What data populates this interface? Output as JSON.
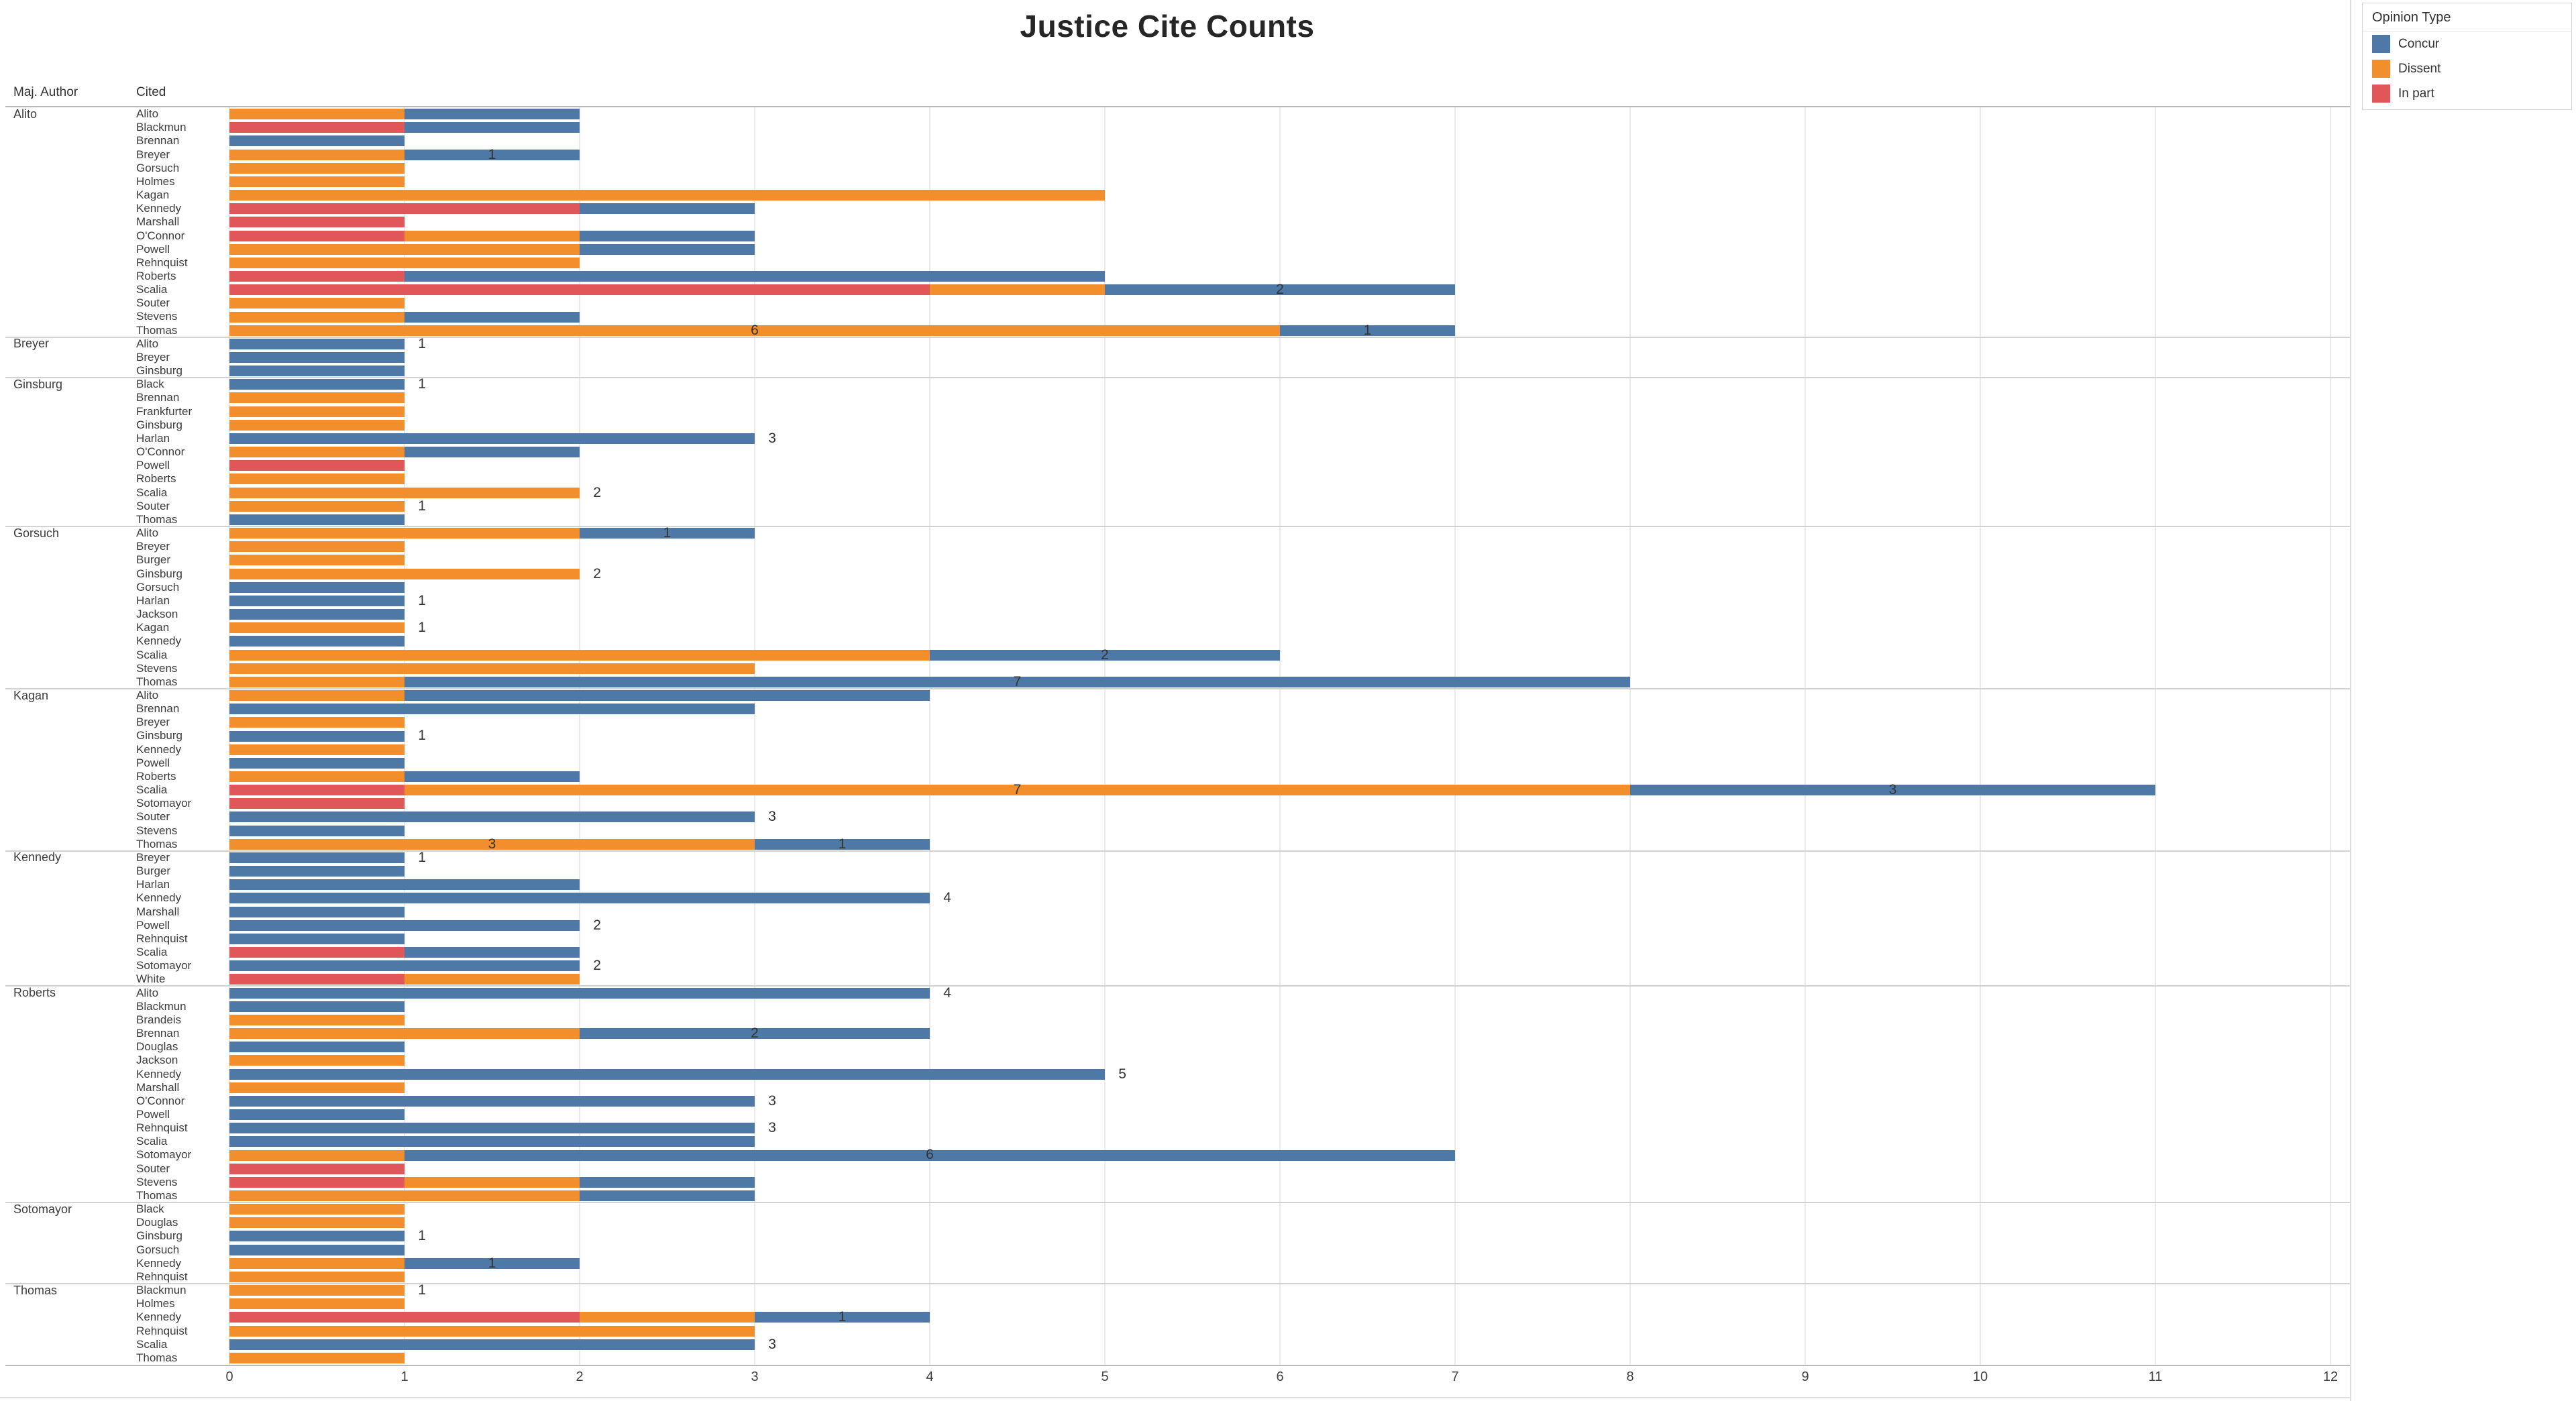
{
  "title": "Justice Cite Counts",
  "columns": {
    "maj_author": "Maj. Author",
    "cited": "Cited"
  },
  "legend": {
    "title": "Opinion Type",
    "items": [
      {
        "label": "Concur",
        "color": "#4e79a7"
      },
      {
        "label": "Dissent",
        "color": "#f28e2b"
      },
      {
        "label": "In part",
        "color": "#e15759"
      }
    ]
  },
  "axis": {
    "min": 0,
    "max": 12,
    "ticks": [
      0,
      1,
      2,
      3,
      4,
      5,
      6,
      7,
      8,
      9,
      10,
      11,
      12
    ]
  },
  "chart_data": {
    "type": "bar",
    "orientation": "horizontal-stacked",
    "title": "Justice Cite Counts",
    "xlabel": "",
    "ylabel": "Maj. Author / Cited",
    "xlim": [
      0,
      12
    ],
    "grid": true,
    "legend_position": "top-right",
    "stack_order": [
      "In part",
      "Dissent",
      "Concur"
    ],
    "series_colors": {
      "inpart": "#e15759",
      "dissent": "#f28e2b",
      "concur": "#4e79a7"
    },
    "groups": [
      {
        "author": "Alito",
        "rows": [
          {
            "cited": "Alito",
            "inpart": 0,
            "dissent": 1,
            "concur": 1,
            "labels": []
          },
          {
            "cited": "Blackmun",
            "inpart": 1,
            "dissent": 0,
            "concur": 1,
            "labels": []
          },
          {
            "cited": "Brennan",
            "inpart": 0,
            "dissent": 0,
            "concur": 1,
            "labels": []
          },
          {
            "cited": "Breyer",
            "inpart": 0,
            "dissent": 1,
            "concur": 1,
            "labels": [
              {
                "text": "1",
                "at": 1.5
              }
            ]
          },
          {
            "cited": "Gorsuch",
            "inpart": 0,
            "dissent": 1,
            "concur": 0,
            "labels": []
          },
          {
            "cited": "Holmes",
            "inpart": 0,
            "dissent": 1,
            "concur": 0,
            "labels": []
          },
          {
            "cited": "Kagan",
            "inpart": 0,
            "dissent": 5,
            "concur": 0,
            "labels": []
          },
          {
            "cited": "Kennedy",
            "inpart": 2,
            "dissent": 0,
            "concur": 1,
            "labels": []
          },
          {
            "cited": "Marshall",
            "inpart": 1,
            "dissent": 0,
            "concur": 0,
            "labels": []
          },
          {
            "cited": "O'Connor",
            "inpart": 1,
            "dissent": 1,
            "concur": 1,
            "labels": []
          },
          {
            "cited": "Powell",
            "inpart": 0,
            "dissent": 2,
            "concur": 1,
            "labels": []
          },
          {
            "cited": "Rehnquist",
            "inpart": 0,
            "dissent": 2,
            "concur": 0,
            "labels": []
          },
          {
            "cited": "Roberts",
            "inpart": 1,
            "dissent": 0,
            "concur": 4,
            "labels": []
          },
          {
            "cited": "Scalia",
            "inpart": 4,
            "dissent": 1,
            "concur": 2,
            "labels": [
              {
                "text": "2",
                "at": 6
              }
            ]
          },
          {
            "cited": "Souter",
            "inpart": 0,
            "dissent": 1,
            "concur": 0,
            "labels": []
          },
          {
            "cited": "Stevens",
            "inpart": 0,
            "dissent": 1,
            "concur": 1,
            "labels": []
          },
          {
            "cited": "Thomas",
            "inpart": 0,
            "dissent": 6,
            "concur": 1,
            "labels": [
              {
                "text": "6",
                "at": 3
              },
              {
                "text": "1",
                "at": 6.5
              }
            ]
          }
        ]
      },
      {
        "author": "Breyer",
        "rows": [
          {
            "cited": "Alito",
            "inpart": 0,
            "dissent": 0,
            "concur": 1,
            "labels": [
              {
                "text": "1",
                "at": 1.1
              }
            ]
          },
          {
            "cited": "Breyer",
            "inpart": 0,
            "dissent": 0,
            "concur": 1,
            "labels": []
          },
          {
            "cited": "Ginsburg",
            "inpart": 0,
            "dissent": 0,
            "concur": 1,
            "labels": []
          }
        ]
      },
      {
        "author": "Ginsburg",
        "rows": [
          {
            "cited": "Black",
            "inpart": 0,
            "dissent": 0,
            "concur": 1,
            "labels": [
              {
                "text": "1",
                "at": 1.1
              }
            ]
          },
          {
            "cited": "Brennan",
            "inpart": 0,
            "dissent": 1,
            "concur": 0,
            "labels": []
          },
          {
            "cited": "Frankfurter",
            "inpart": 0,
            "dissent": 1,
            "concur": 0,
            "labels": []
          },
          {
            "cited": "Ginsburg",
            "inpart": 0,
            "dissent": 1,
            "concur": 0,
            "labels": []
          },
          {
            "cited": "Harlan",
            "inpart": 0,
            "dissent": 0,
            "concur": 3,
            "labels": [
              {
                "text": "3",
                "at": 3.1
              }
            ]
          },
          {
            "cited": "O'Connor",
            "inpart": 0,
            "dissent": 1,
            "concur": 1,
            "labels": []
          },
          {
            "cited": "Powell",
            "inpart": 1,
            "dissent": 0,
            "concur": 0,
            "labels": []
          },
          {
            "cited": "Roberts",
            "inpart": 0,
            "dissent": 1,
            "concur": 0,
            "labels": []
          },
          {
            "cited": "Scalia",
            "inpart": 0,
            "dissent": 2,
            "concur": 0,
            "labels": [
              {
                "text": "2",
                "at": 2.1
              }
            ]
          },
          {
            "cited": "Souter",
            "inpart": 0,
            "dissent": 1,
            "concur": 0,
            "labels": [
              {
                "text": "1",
                "at": 1.1
              }
            ]
          },
          {
            "cited": "Thomas",
            "inpart": 0,
            "dissent": 0,
            "concur": 1,
            "labels": []
          }
        ]
      },
      {
        "author": "Gorsuch",
        "rows": [
          {
            "cited": "Alito",
            "inpart": 0,
            "dissent": 2,
            "concur": 1,
            "labels": [
              {
                "text": "1",
                "at": 2.5
              }
            ]
          },
          {
            "cited": "Breyer",
            "inpart": 0,
            "dissent": 1,
            "concur": 0,
            "labels": []
          },
          {
            "cited": "Burger",
            "inpart": 0,
            "dissent": 1,
            "concur": 0,
            "labels": []
          },
          {
            "cited": "Ginsburg",
            "inpart": 0,
            "dissent": 2,
            "concur": 0,
            "labels": [
              {
                "text": "2",
                "at": 2.1
              }
            ]
          },
          {
            "cited": "Gorsuch",
            "inpart": 0,
            "dissent": 0,
            "concur": 1,
            "labels": []
          },
          {
            "cited": "Harlan",
            "inpart": 0,
            "dissent": 0,
            "concur": 1,
            "labels": [
              {
                "text": "1",
                "at": 1.1
              }
            ]
          },
          {
            "cited": "Jackson",
            "inpart": 0,
            "dissent": 0,
            "concur": 1,
            "labels": []
          },
          {
            "cited": "Kagan",
            "inpart": 0,
            "dissent": 1,
            "concur": 0,
            "labels": [
              {
                "text": "1",
                "at": 1.1
              }
            ]
          },
          {
            "cited": "Kennedy",
            "inpart": 0,
            "dissent": 0,
            "concur": 1,
            "labels": []
          },
          {
            "cited": "Scalia",
            "inpart": 0,
            "dissent": 4,
            "concur": 2,
            "labels": [
              {
                "text": "2",
                "at": 5
              }
            ]
          },
          {
            "cited": "Stevens",
            "inpart": 0,
            "dissent": 3,
            "concur": 0,
            "labels": []
          },
          {
            "cited": "Thomas",
            "inpart": 0,
            "dissent": 1,
            "concur": 7,
            "labels": [
              {
                "text": "7",
                "at": 4.5
              }
            ]
          }
        ]
      },
      {
        "author": "Kagan",
        "rows": [
          {
            "cited": "Alito",
            "inpart": 0,
            "dissent": 1,
            "concur": 3,
            "labels": []
          },
          {
            "cited": "Brennan",
            "inpart": 0,
            "dissent": 0,
            "concur": 3,
            "labels": []
          },
          {
            "cited": "Breyer",
            "inpart": 0,
            "dissent": 1,
            "concur": 0,
            "labels": []
          },
          {
            "cited": "Ginsburg",
            "inpart": 0,
            "dissent": 0,
            "concur": 1,
            "labels": [
              {
                "text": "1",
                "at": 1.1
              }
            ]
          },
          {
            "cited": "Kennedy",
            "inpart": 0,
            "dissent": 1,
            "concur": 0,
            "labels": []
          },
          {
            "cited": "Powell",
            "inpart": 0,
            "dissent": 0,
            "concur": 1,
            "labels": []
          },
          {
            "cited": "Roberts",
            "inpart": 0,
            "dissent": 1,
            "concur": 1,
            "labels": []
          },
          {
            "cited": "Scalia",
            "inpart": 1,
            "dissent": 7,
            "concur": 3,
            "labels": [
              {
                "text": "7",
                "at": 4.5
              },
              {
                "text": "3",
                "at": 9.5
              }
            ]
          },
          {
            "cited": "Sotomayor",
            "inpart": 1,
            "dissent": 0,
            "concur": 0,
            "labels": []
          },
          {
            "cited": "Souter",
            "inpart": 0,
            "dissent": 0,
            "concur": 3,
            "labels": [
              {
                "text": "3",
                "at": 3.1
              }
            ]
          },
          {
            "cited": "Stevens",
            "inpart": 0,
            "dissent": 0,
            "concur": 1,
            "labels": []
          },
          {
            "cited": "Thomas",
            "inpart": 0,
            "dissent": 3,
            "concur": 1,
            "labels": [
              {
                "text": "3",
                "at": 1.5
              },
              {
                "text": "1",
                "at": 3.5
              }
            ]
          }
        ]
      },
      {
        "author": "Kennedy",
        "rows": [
          {
            "cited": "Breyer",
            "inpart": 0,
            "dissent": 0,
            "concur": 1,
            "labels": [
              {
                "text": "1",
                "at": 1.1
              }
            ]
          },
          {
            "cited": "Burger",
            "inpart": 0,
            "dissent": 0,
            "concur": 1,
            "labels": []
          },
          {
            "cited": "Harlan",
            "inpart": 0,
            "dissent": 0,
            "concur": 2,
            "labels": []
          },
          {
            "cited": "Kennedy",
            "inpart": 0,
            "dissent": 0,
            "concur": 4,
            "labels": [
              {
                "text": "4",
                "at": 4.1
              }
            ]
          },
          {
            "cited": "Marshall",
            "inpart": 0,
            "dissent": 0,
            "concur": 1,
            "labels": []
          },
          {
            "cited": "Powell",
            "inpart": 0,
            "dissent": 0,
            "concur": 2,
            "labels": [
              {
                "text": "2",
                "at": 2.1
              }
            ]
          },
          {
            "cited": "Rehnquist",
            "inpart": 0,
            "dissent": 0,
            "concur": 1,
            "labels": []
          },
          {
            "cited": "Scalia",
            "inpart": 1,
            "dissent": 0,
            "concur": 1,
            "labels": []
          },
          {
            "cited": "Sotomayor",
            "inpart": 0,
            "dissent": 0,
            "concur": 2,
            "labels": [
              {
                "text": "2",
                "at": 2.1
              }
            ]
          },
          {
            "cited": "White",
            "inpart": 1,
            "dissent": 1,
            "concur": 0,
            "labels": []
          }
        ]
      },
      {
        "author": "Roberts",
        "rows": [
          {
            "cited": "Alito",
            "inpart": 0,
            "dissent": 0,
            "concur": 4,
            "labels": [
              {
                "text": "4",
                "at": 4.1
              }
            ]
          },
          {
            "cited": "Blackmun",
            "inpart": 0,
            "dissent": 0,
            "concur": 1,
            "labels": []
          },
          {
            "cited": "Brandeis",
            "inpart": 0,
            "dissent": 1,
            "concur": 0,
            "labels": []
          },
          {
            "cited": "Brennan",
            "inpart": 0,
            "dissent": 2,
            "concur": 2,
            "labels": [
              {
                "text": "2",
                "at": 3
              }
            ]
          },
          {
            "cited": "Douglas",
            "inpart": 0,
            "dissent": 0,
            "concur": 1,
            "labels": []
          },
          {
            "cited": "Jackson",
            "inpart": 0,
            "dissent": 1,
            "concur": 0,
            "labels": []
          },
          {
            "cited": "Kennedy",
            "inpart": 0,
            "dissent": 0,
            "concur": 5,
            "labels": [
              {
                "text": "5",
                "at": 5.1
              }
            ]
          },
          {
            "cited": "Marshall",
            "inpart": 0,
            "dissent": 1,
            "concur": 0,
            "labels": []
          },
          {
            "cited": "O'Connor",
            "inpart": 0,
            "dissent": 0,
            "concur": 3,
            "labels": [
              {
                "text": "3",
                "at": 3.1
              }
            ]
          },
          {
            "cited": "Powell",
            "inpart": 0,
            "dissent": 0,
            "concur": 1,
            "labels": []
          },
          {
            "cited": "Rehnquist",
            "inpart": 0,
            "dissent": 0,
            "concur": 3,
            "labels": [
              {
                "text": "3",
                "at": 3.1
              }
            ]
          },
          {
            "cited": "Scalia",
            "inpart": 0,
            "dissent": 0,
            "concur": 3,
            "labels": []
          },
          {
            "cited": "Sotomayor",
            "inpart": 0,
            "dissent": 1,
            "concur": 6,
            "labels": [
              {
                "text": "6",
                "at": 4
              }
            ]
          },
          {
            "cited": "Souter",
            "inpart": 1,
            "dissent": 0,
            "concur": 0,
            "labels": []
          },
          {
            "cited": "Stevens",
            "inpart": 1,
            "dissent": 1,
            "concur": 1,
            "labels": []
          },
          {
            "cited": "Thomas",
            "inpart": 0,
            "dissent": 2,
            "concur": 1,
            "labels": []
          }
        ]
      },
      {
        "author": "Sotomayor",
        "rows": [
          {
            "cited": "Black",
            "inpart": 0,
            "dissent": 1,
            "concur": 0,
            "labels": []
          },
          {
            "cited": "Douglas",
            "inpart": 0,
            "dissent": 1,
            "concur": 0,
            "labels": []
          },
          {
            "cited": "Ginsburg",
            "inpart": 0,
            "dissent": 0,
            "concur": 1,
            "labels": [
              {
                "text": "1",
                "at": 1.1
              }
            ]
          },
          {
            "cited": "Gorsuch",
            "inpart": 0,
            "dissent": 0,
            "concur": 1,
            "labels": []
          },
          {
            "cited": "Kennedy",
            "inpart": 0,
            "dissent": 1,
            "concur": 1,
            "labels": [
              {
                "text": "1",
                "at": 1.5
              }
            ]
          },
          {
            "cited": "Rehnquist",
            "inpart": 0,
            "dissent": 1,
            "concur": 0,
            "labels": []
          }
        ]
      },
      {
        "author": "Thomas",
        "rows": [
          {
            "cited": "Blackmun",
            "inpart": 0,
            "dissent": 1,
            "concur": 0,
            "labels": [
              {
                "text": "1",
                "at": 1.1
              }
            ]
          },
          {
            "cited": "Holmes",
            "inpart": 0,
            "dissent": 1,
            "concur": 0,
            "labels": []
          },
          {
            "cited": "Kennedy",
            "inpart": 2,
            "dissent": 1,
            "concur": 1,
            "labels": [
              {
                "text": "1",
                "at": 3.5
              }
            ]
          },
          {
            "cited": "Rehnquist",
            "inpart": 0,
            "dissent": 3,
            "concur": 0,
            "labels": []
          },
          {
            "cited": "Scalia",
            "inpart": 0,
            "dissent": 0,
            "concur": 3,
            "labels": [
              {
                "text": "3",
                "at": 3.1
              }
            ]
          },
          {
            "cited": "Thomas",
            "inpart": 0,
            "dissent": 1,
            "concur": 0,
            "labels": []
          }
        ]
      }
    ]
  }
}
